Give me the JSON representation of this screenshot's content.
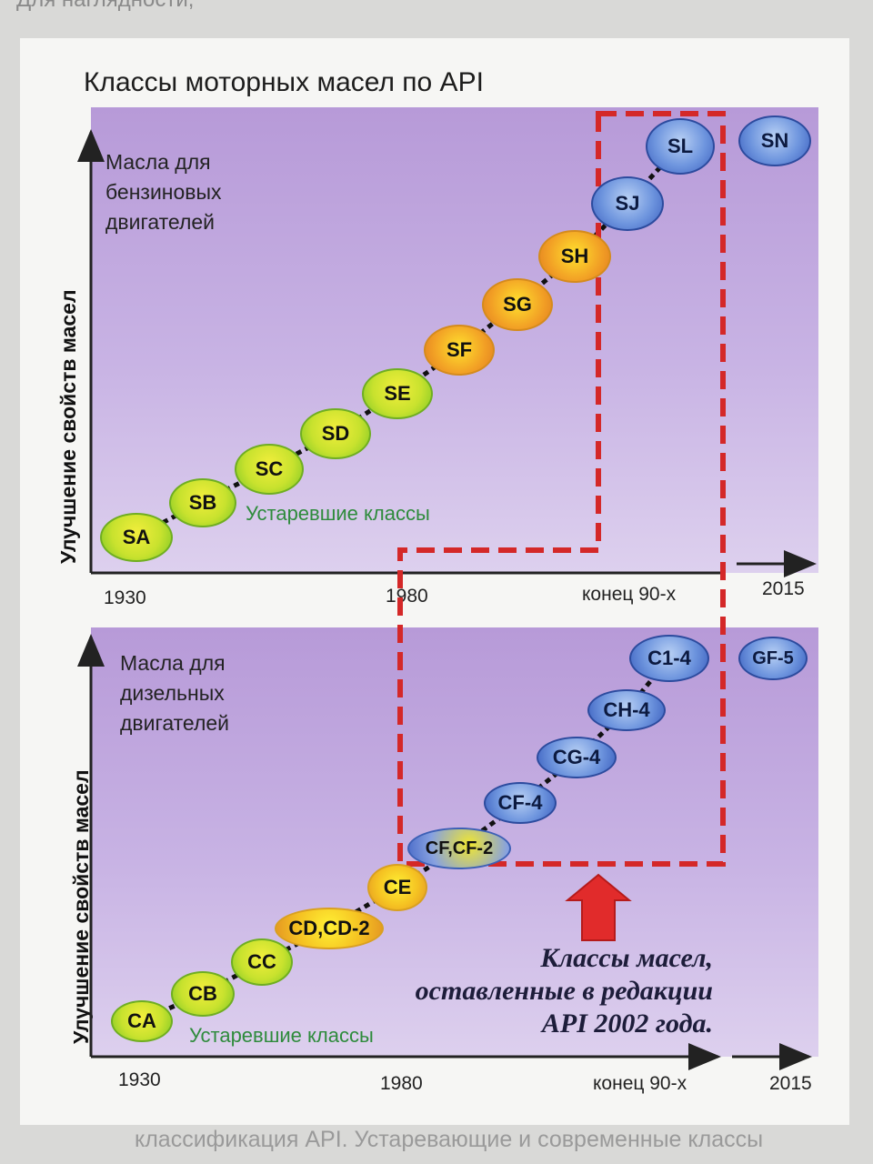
{
  "page": {
    "top_text": "Для наглядности,",
    "title": "Классы моторных масел по API",
    "footer": "классификация API. Устаревающие и современные классы"
  },
  "top_panel": {
    "label_lines": [
      "Масла для",
      "бензиновых",
      "двигателей"
    ],
    "y_axis": "Улучшение свойств масел",
    "obsolete_label": "Устаревшие классы",
    "x_ticks": [
      "1930",
      "1980",
      "конец 90-х",
      "2015"
    ],
    "nodes": [
      "SA",
      "SB",
      "SC",
      "SD",
      "SE",
      "SF",
      "SG",
      "SH",
      "SJ",
      "SL",
      "SN"
    ]
  },
  "bottom_panel": {
    "label_lines": [
      "Масла для",
      "дизельных",
      "двигателей"
    ],
    "y_axis": "Улучшение свойств масел",
    "obsolete_label": "Устаревшие классы",
    "x_ticks": [
      "1930",
      "1980",
      "конец 90-х",
      "2015"
    ],
    "nodes": [
      "CA",
      "CB",
      "CC",
      "CD,CD-2",
      "CE",
      "CF,CF-2",
      "CF-4",
      "CG-4",
      "CH-4",
      "C1-4",
      "GF-5"
    ]
  },
  "annotation": {
    "lines": [
      "Классы масел,",
      "оставленные в редакции",
      "API 2002 года."
    ]
  },
  "colors": {
    "obsolete_node": "#c8e22e",
    "transition_node": "#f2a025",
    "current_node": "#4a72cc",
    "highlight_border": "#d42828",
    "obsolete_text": "#2e8b3c"
  }
}
